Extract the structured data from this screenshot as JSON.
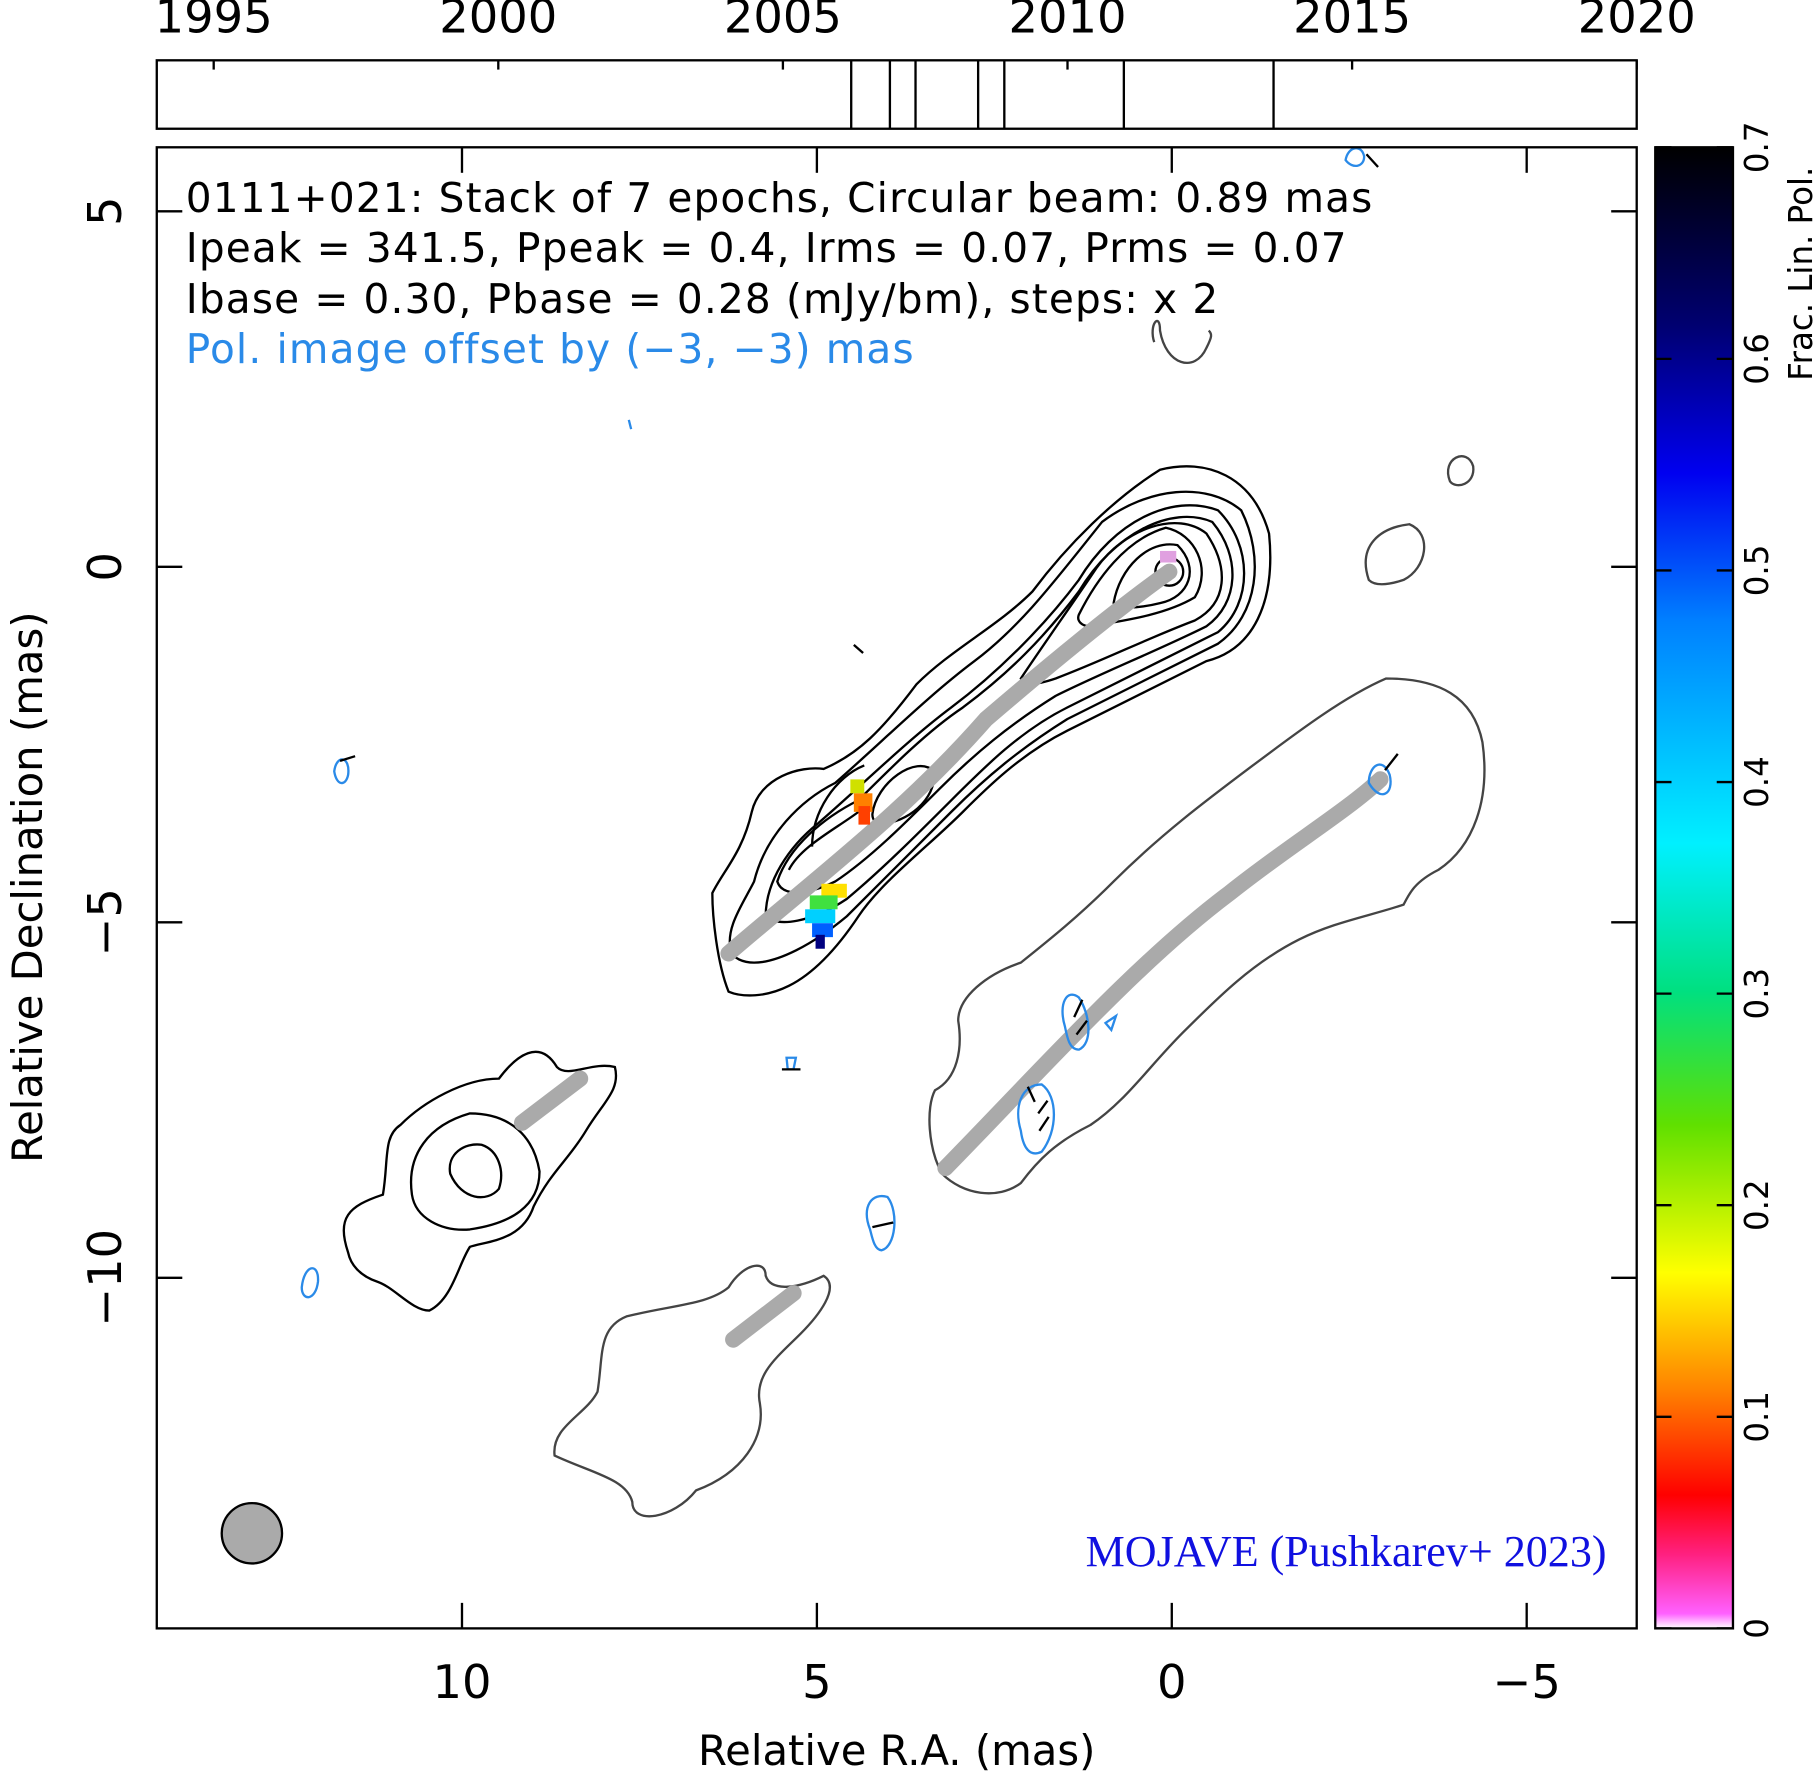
{
  "chart_data": [
    {
      "type": "timeline",
      "xlim": [
        1994,
        2020
      ],
      "xticks": [
        1995,
        2000,
        2005,
        2010,
        2015,
        2020
      ],
      "epochs": [
        2006.2,
        2006.88,
        2007.33,
        2008.43,
        2008.89,
        2010.99,
        2013.62
      ]
    },
    {
      "type": "map",
      "title": "0111+021: Stack of 7 epochs, Circular beam: 0.89 mas",
      "annotations": [
        "Ipeak = 341.5, Ppeak = 0.4, Irms = 0.07, Prms = 0.07",
        "Ibase = 0.30, Pbase = 0.28 (mJy/bm), steps: x 2",
        "Pol. image offset by (−3, −3) mas"
      ],
      "credit": "MOJAVE (Pushkarev+ 2023)",
      "xlabel": "Relative R.A. (mas)",
      "ylabel": "Relative Declination (mas)",
      "xlim": [
        14.3,
        -6.55
      ],
      "ylim": [
        -14.93,
        5.9
      ],
      "xticks": [
        10,
        5,
        0,
        {
          "value": -5,
          "label": "−5"
        }
      ],
      "yticks": [
        5,
        0,
        {
          "value": -5,
          "label": "−5"
        },
        {
          "value": -10,
          "label": "−10"
        }
      ]
    },
    {
      "type": "colorbar",
      "label": "Frac. Lin. Pol.",
      "ylim": [
        0,
        0.7
      ],
      "yticks": [
        0,
        0.1,
        0.2,
        0.3,
        0.4,
        0.5,
        0.6,
        0.7
      ]
    }
  ]
}
